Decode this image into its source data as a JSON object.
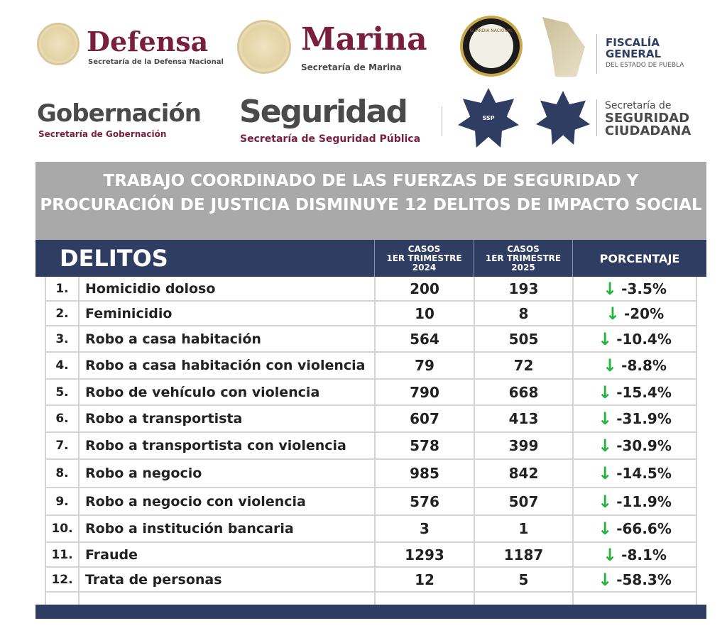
{
  "logos": {
    "defensa": {
      "title": "Defensa",
      "subtitle": "Secretaría de la Defensa Nacional"
    },
    "marina": {
      "title": "Marina",
      "subtitle": "Secretaría de Marina"
    },
    "guardia": {
      "text": "GUARDIA NACIONAL"
    },
    "fiscalia": {
      "line1": "FISCALÍA",
      "line2": "GENERAL",
      "line3": "DEL ESTADO DE PUEBLA"
    },
    "gobernacion": {
      "title": "Gobernación",
      "subtitle": "Secretaría de Gobernación"
    },
    "seguridad": {
      "title": "Seguridad",
      "subtitle": "Secretaría de Seguridad Pública"
    },
    "ssp": {
      "text": "SSP"
    },
    "ciudadana": {
      "line1": "Secretaría de",
      "line2": "SEGURIDAD",
      "line3": "CIUDADANA"
    }
  },
  "banner": {
    "title": "TRABAJO COORDINADO DE LAS FUERZAS DE SEGURIDAD Y PROCURACIÓN DE JUSTICIA DISMINUYE 12 DELITOS DE IMPACTO SOCIAL"
  },
  "table": {
    "headers": {
      "delitos": "DELITOS",
      "c2024": [
        "CASOS",
        "1ER TRIMESTRE",
        "2024"
      ],
      "c2025": [
        "CASOS",
        "1ER TRIMESTRE",
        "2025"
      ],
      "pct": "PORCENTAJE"
    },
    "trend_icon": "arrow-down-icon",
    "trend_color": "#22b43c",
    "header_color": "#2f3d63",
    "rows": [
      {
        "num": "1.",
        "name": "Homicidio doloso",
        "a": "200",
        "b": "193",
        "pct": "-3.5%"
      },
      {
        "num": "2.",
        "name": "Feminicidio",
        "a": "10",
        "b": "8",
        "pct": "-20%"
      },
      {
        "num": "3.",
        "name": "Robo a casa habitación",
        "a": "564",
        "b": "505",
        "pct": "-10.4%"
      },
      {
        "num": "4.",
        "name": "Robo a casa habitación con violencia",
        "a": "79",
        "b": "72",
        "pct": "-8.8%"
      },
      {
        "num": "5.",
        "name": "Robo de vehículo con violencia",
        "a": "790",
        "b": "668",
        "pct": "-15.4%"
      },
      {
        "num": "6.",
        "name": "Robo a transportista",
        "a": "607",
        "b": "413",
        "pct": "-31.9%"
      },
      {
        "num": "7.",
        "name": "Robo a transportista con violencia",
        "a": "578",
        "b": "399",
        "pct": "-30.9%"
      },
      {
        "num": "8.",
        "name": "Robo a negocio",
        "a": "985",
        "b": "842",
        "pct": "-14.5%"
      },
      {
        "num": "9.",
        "name": "Robo a negocio con violencia",
        "a": "576",
        "b": "507",
        "pct": "-11.9%"
      },
      {
        "num": "10.",
        "name": "Robo a institución bancaria",
        "a": "3",
        "b": "1",
        "pct": "-66.6%"
      },
      {
        "num": "11.",
        "name": "Fraude",
        "a": "1293",
        "b": "1187",
        "pct": "-8.1%"
      },
      {
        "num": "12.",
        "name": "Trata de personas",
        "a": "12",
        "b": "5",
        "pct": "-58.3%"
      }
    ]
  }
}
